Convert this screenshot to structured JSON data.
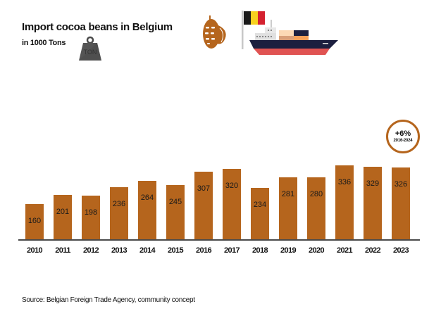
{
  "header": {
    "title": "Import cocoa beans in Belgium",
    "subtitle": "in 1000 Tons",
    "weight_icon_label": "TON"
  },
  "icons": [
    "ton-weight-icon",
    "cocoa-pod-icon",
    "belgium-flag-icon",
    "cargo-ship-icon"
  ],
  "colors": {
    "bar": "#b5651d",
    "baseline": "#4a4a4a",
    "flag_black": "#1a1a1a",
    "flag_yellow": "#f7d11e",
    "flag_red": "#d4212f",
    "ship_hull_top": "#1c1f3f",
    "ship_hull_bottom": "#e05352"
  },
  "badge": {
    "value": "+6%",
    "period": "2016-2024"
  },
  "source": "Source: Belgian Foreign Trade Agency, community concept",
  "chart_data": {
    "type": "bar",
    "title": "Import cocoa beans in Belgium",
    "subtitle": "in 1000 Tons",
    "xlabel": "",
    "ylabel": "1000 Tons",
    "categories": [
      "2010",
      "2011",
      "2012",
      "2013",
      "2014",
      "2015",
      "2016",
      "2017",
      "2018",
      "2019",
      "2020",
      "2021",
      "2022",
      "2023"
    ],
    "values": [
      160,
      201,
      198,
      236,
      264,
      245,
      307,
      320,
      234,
      281,
      280,
      336,
      329,
      326
    ],
    "data_labels": [
      "160",
      "201",
      "198",
      "236",
      "264",
      "245",
      "307",
      "320",
      "234",
      "281",
      "280",
      "336",
      "329",
      "326"
    ],
    "ylim": [
      0,
      360
    ],
    "grid": false,
    "legend": null,
    "annotations": [
      {
        "text": "+6%",
        "subtext": "2016-2024",
        "position": "above last bar"
      }
    ]
  }
}
